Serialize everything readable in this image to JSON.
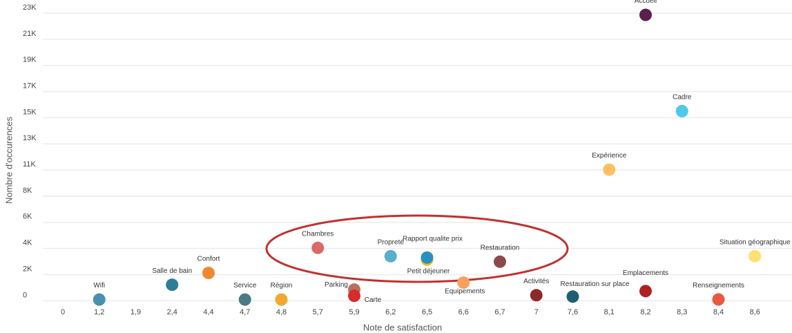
{
  "chart_data": {
    "type": "scatter",
    "x_label": "Note de satisfaction",
    "y_label": "Nombre d'occurences",
    "categories": [
      "0",
      "1,2",
      "1,9",
      "2,4",
      "4,4",
      "4,7",
      "4,8",
      "5,7",
      "5,9",
      "6,2",
      "6,5",
      "6,6",
      "6,7",
      "7",
      "7,6",
      "8,1",
      "8,2",
      "8,3",
      "8,4",
      "8,6"
    ],
    "ylim": [
      -700,
      23600
    ],
    "yticks": [
      0,
      {
        "value": 2100,
        "label": "2K"
      },
      {
        "value": 4200,
        "label": "4K"
      },
      {
        "value": 6300,
        "label": "6K"
      },
      {
        "value": 8400,
        "label": "8K"
      },
      {
        "value": 10500,
        "label": "11K"
      },
      {
        "value": 12600,
        "label": "13K"
      },
      {
        "value": 14700,
        "label": "15K"
      },
      {
        "value": 16800,
        "label": "17K"
      },
      {
        "value": 18900,
        "label": "19K"
      },
      {
        "value": 21000,
        "label": "21K"
      },
      {
        "value": 23100,
        "label": "23K"
      }
    ],
    "grid": true,
    "points": [
      {
        "label": "Wifi",
        "x": "1,2",
        "y": 100,
        "color": "#4a8fb0"
      },
      {
        "label": "Salle de bain",
        "x": "2,4",
        "y": 1290,
        "color": "#2e7d94"
      },
      {
        "label": "Confort",
        "x": "4,4",
        "y": 2240,
        "color": "#f0882f"
      },
      {
        "label": "Service",
        "x": "4,7",
        "y": 100,
        "color": "#4a7a8a"
      },
      {
        "label": "Région",
        "x": "4,8",
        "y": 100,
        "color": "#f0a830"
      },
      {
        "label": "Chambres",
        "x": "5,7",
        "y": 4250,
        "color": "#d96a6a"
      },
      {
        "label": "Parking",
        "x": "5,9",
        "y": 900,
        "color": "#b8705f"
      },
      {
        "label": "Carte",
        "x": "5,9",
        "y": 400,
        "color": "#d62c2c"
      },
      {
        "label": "Propreté",
        "x": "6,2",
        "y": 3580,
        "color": "#5aadcc"
      },
      {
        "label": "Petit déjeuner",
        "x": "6,5",
        "y": 3300,
        "color": "#e8c020"
      },
      {
        "label": "Rapport qualite prix",
        "x": "6,5",
        "y": 3470,
        "color": "#2b8fc0"
      },
      {
        "label": "Equipements",
        "x": "6,6",
        "y": 1460,
        "color": "#f7a060"
      },
      {
        "label": "Restauration",
        "x": "6,7",
        "y": 3140,
        "color": "#8b4a4a"
      },
      {
        "label": "Activités",
        "x": "7",
        "y": 450,
        "color": "#8b2a2a"
      },
      {
        "label": "Restauration sur place",
        "x": "7,6",
        "y": 340,
        "color": "#1f6070"
      },
      {
        "label": "Expérience",
        "x": "8,1",
        "y": 10530,
        "color": "#fcc060"
      },
      {
        "label": "Accueil",
        "x": "8,2",
        "y": 22960,
        "color": "#5a1f4a"
      },
      {
        "label": "Emplacements",
        "x": "8,2",
        "y": 780,
        "color": "#b02020"
      },
      {
        "label": "Cadre",
        "x": "8,3",
        "y": 15230,
        "color": "#50c8e8"
      },
      {
        "label": "Renseignements",
        "x": "8,4",
        "y": 110,
        "color": "#e85a40"
      },
      {
        "label": "Situation géographique",
        "x": "8,6",
        "y": 3580,
        "color": "#ffe070"
      }
    ]
  }
}
